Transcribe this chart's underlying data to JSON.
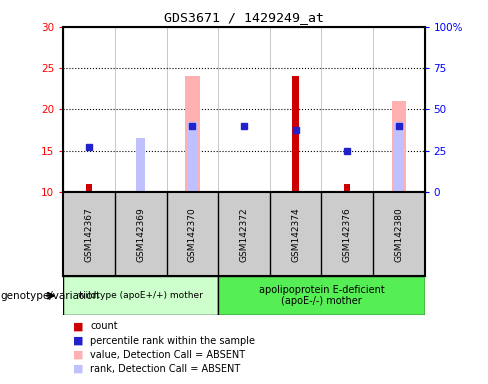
{
  "title": "GDS3671 / 1429249_at",
  "samples": [
    "GSM142367",
    "GSM142369",
    "GSM142370",
    "GSM142372",
    "GSM142374",
    "GSM142376",
    "GSM142380"
  ],
  "ylim_left": [
    10,
    30
  ],
  "ylim_right": [
    0,
    100
  ],
  "yticks_left": [
    10,
    15,
    20,
    25,
    30
  ],
  "yticks_right": [
    0,
    25,
    50,
    75,
    100
  ],
  "ytick_labels_right": [
    "0",
    "25",
    "50",
    "75",
    "100%"
  ],
  "count_values": [
    11,
    null,
    null,
    null,
    24,
    11,
    null
  ],
  "rank_values": [
    15.5,
    null,
    18.0,
    18.0,
    17.5,
    15.0,
    18.0
  ],
  "value_absent": [
    null,
    null,
    24.0,
    null,
    null,
    null,
    21.0
  ],
  "rank_absent": [
    null,
    16.5,
    18.5,
    null,
    null,
    null,
    18.5
  ],
  "count_color": "#cc0000",
  "rank_color": "#2222cc",
  "value_absent_color": "#ffb0b0",
  "rank_absent_color": "#c0c0ff",
  "group1_label": "wildtype (apoE+/+) mother",
  "group2_label": "apolipoprotein E-deficient\n(apoE-/-) mother",
  "group1_color": "#ccffcc",
  "group2_color": "#55ee55",
  "genotype_label": "genotype/variation",
  "background_color": "#ffffff",
  "grid_color": "#000000",
  "grid_yticks": [
    15,
    20,
    25
  ],
  "legend_items": [
    {
      "label": "count",
      "color": "#cc0000"
    },
    {
      "label": "percentile rank within the sample",
      "color": "#2222cc"
    },
    {
      "label": "value, Detection Call = ABSENT",
      "color": "#ffb0b0"
    },
    {
      "label": "rank, Detection Call = ABSENT",
      "color": "#c0c0ff"
    }
  ]
}
